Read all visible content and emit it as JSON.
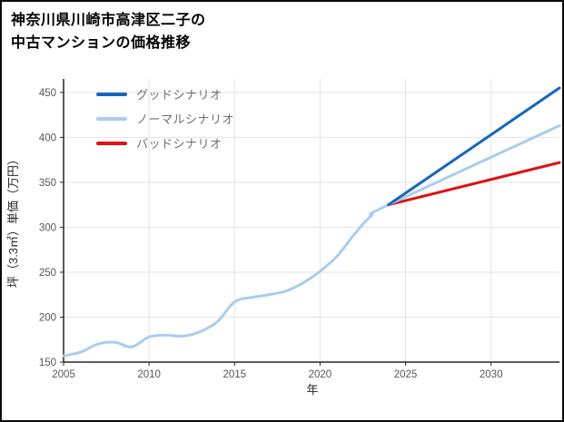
{
  "title": {
    "line1": "神奈川県川崎市高津区二子の",
    "line2": "中古マンションの価格推移"
  },
  "chart_data": {
    "type": "line",
    "title": "神奈川県川崎市高津区二子の中古マンションの価格推移",
    "xlabel": "年",
    "ylabel": "坪（3.3㎡）単価（万円）",
    "xlim": [
      2005,
      2034
    ],
    "ylim": [
      150,
      465
    ],
    "x_ticks": [
      2005,
      2010,
      2015,
      2020,
      2025,
      2030
    ],
    "y_ticks": [
      150,
      200,
      250,
      300,
      350,
      400,
      450
    ],
    "grid": true,
    "legend_position": "top-left",
    "series": [
      {
        "name": "グッドシナリオ",
        "color": "#1565c0",
        "x": [
          2024,
          2034
        ],
        "values": [
          325,
          455
        ]
      },
      {
        "name": "ノーマルシナリオ",
        "color": "#a9cdee",
        "x": [
          2005,
          2006,
          2007,
          2008,
          2009,
          2010,
          2011,
          2012,
          2013,
          2014,
          2015,
          2016,
          2017,
          2018,
          2019,
          2020,
          2021,
          2022,
          2023,
          2024,
          2034
        ],
        "values": [
          157,
          161,
          170,
          172,
          167,
          178,
          180,
          179,
          184,
          195,
          217,
          222,
          225,
          229,
          238,
          251,
          268,
          292,
          313,
          325,
          413
        ]
      },
      {
        "name": "バッドシナリオ",
        "color": "#e01212",
        "x": [
          2024,
          2034
        ],
        "values": [
          325,
          372
        ]
      }
    ],
    "colors": {
      "grid": "#e3e3e3",
      "axis": "#262626",
      "tick_label": "#565656",
      "legend_label": "#6e6e6e",
      "background": "#ffffff"
    }
  }
}
